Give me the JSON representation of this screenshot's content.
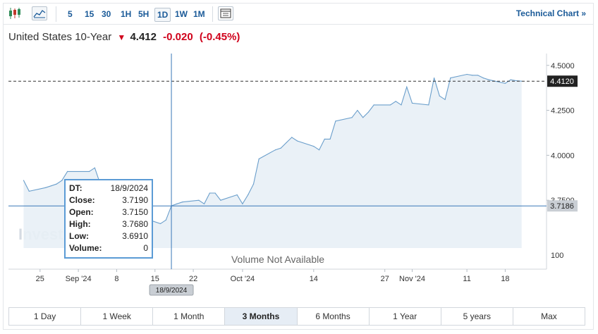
{
  "toolbar": {
    "timeframes": [
      "5",
      "15",
      "30",
      "1H",
      "5H",
      "1D",
      "1W",
      "1M"
    ],
    "active_timeframe": "1D",
    "technical_link": "Technical Chart »"
  },
  "header": {
    "name": "United States 10-Year",
    "last": "4.412",
    "change": "-0.020",
    "change_pct": "(-0.45%)"
  },
  "tooltip": {
    "rows": [
      {
        "label": "DT:",
        "value": "18/9/2024"
      },
      {
        "label": "Close:",
        "value": "3.7190"
      },
      {
        "label": "Open:",
        "value": "3.7150"
      },
      {
        "label": "High:",
        "value": "3.7680"
      },
      {
        "label": "Low:",
        "value": "3.6910"
      },
      {
        "label": "Volume:",
        "value": "0"
      }
    ]
  },
  "chart_data": {
    "type": "area",
    "x": [
      "2024-08-22",
      "2024-08-23",
      "2024-08-26",
      "2024-08-27",
      "2024-08-28",
      "2024-08-29",
      "2024-08-30",
      "2024-09-03",
      "2024-09-04",
      "2024-09-05",
      "2024-09-06",
      "2024-09-09",
      "2024-09-10",
      "2024-09-11",
      "2024-09-12",
      "2024-09-13",
      "2024-09-16",
      "2024-09-17",
      "2024-09-18",
      "2024-09-19",
      "2024-09-20",
      "2024-09-23",
      "2024-09-24",
      "2024-09-25",
      "2024-09-26",
      "2024-09-27",
      "2024-09-30",
      "2024-10-01",
      "2024-10-02",
      "2024-10-03",
      "2024-10-04",
      "2024-10-07",
      "2024-10-08",
      "2024-10-09",
      "2024-10-10",
      "2024-10-11",
      "2024-10-14",
      "2024-10-15",
      "2024-10-16",
      "2024-10-17",
      "2024-10-18",
      "2024-10-21",
      "2024-10-22",
      "2024-10-23",
      "2024-10-24",
      "2024-10-25",
      "2024-10-28",
      "2024-10-29",
      "2024-10-30",
      "2024-10-31",
      "2024-11-01",
      "2024-11-04",
      "2024-11-05",
      "2024-11-06",
      "2024-11-07",
      "2024-11-08",
      "2024-11-11",
      "2024-11-12",
      "2024-11-13",
      "2024-11-14",
      "2024-11-15",
      "2024-11-18",
      "2024-11-19",
      "2024-11-20",
      "2024-11-21"
    ],
    "y": [
      3.86,
      3.8,
      3.82,
      3.83,
      3.84,
      3.86,
      3.91,
      3.91,
      3.93,
      3.84,
      3.72,
      3.7,
      3.65,
      3.66,
      3.67,
      3.65,
      3.62,
      3.64,
      3.719,
      3.73,
      3.74,
      3.75,
      3.73,
      3.79,
      3.79,
      3.75,
      3.78,
      3.73,
      3.78,
      3.84,
      3.98,
      4.03,
      4.04,
      4.07,
      4.1,
      4.08,
      4.05,
      4.03,
      4.09,
      4.09,
      4.19,
      4.21,
      4.25,
      4.21,
      4.24,
      4.28,
      4.28,
      4.3,
      4.28,
      4.38,
      4.29,
      4.28,
      4.43,
      4.33,
      4.31,
      4.43,
      4.45,
      4.445,
      4.445,
      4.43,
      4.42,
      4.4,
      4.42,
      4.415,
      4.412
    ],
    "x_tick_labels": [
      "25",
      "Sep '24",
      "8",
      "15",
      "22",
      "Oct '24",
      "14",
      "27",
      "Nov '24",
      "11",
      "18"
    ],
    "x_tick_dates": [
      "2024-08-25",
      "2024-09-01",
      "2024-09-08",
      "2024-09-15",
      "2024-09-22",
      "2024-10-01",
      "2024-10-14",
      "2024-10-27",
      "2024-11-01",
      "2024-11-11",
      "2024-11-18"
    ],
    "y_ticks": [
      3.75,
      4.0,
      4.25,
      4.5
    ],
    "y_tick_labels": [
      "3.7500",
      "4.0000",
      "4.2500",
      "4.5000"
    ],
    "ylim": [
      3.5,
      4.55
    ],
    "last_value_label": "4.4120",
    "crosshair": {
      "x_date": "2024-09-18",
      "x_label": "18/9/2024",
      "y": 3.7186,
      "y_label": "3.7186"
    },
    "volume_axis_label": "100",
    "volume_note": "Volume Not Available",
    "watermark": "Invest",
    "colors": {
      "line": "#6a9ecb",
      "fill": "#e8eff6",
      "crosshair": "#3a78b8",
      "last_box": "#222222",
      "cross_box": "#c9ced4"
    }
  },
  "period_buttons": [
    "1 Day",
    "1 Week",
    "1 Month",
    "3 Months",
    "6 Months",
    "1 Year",
    "5 years",
    "Max"
  ],
  "active_period": "3 Months"
}
